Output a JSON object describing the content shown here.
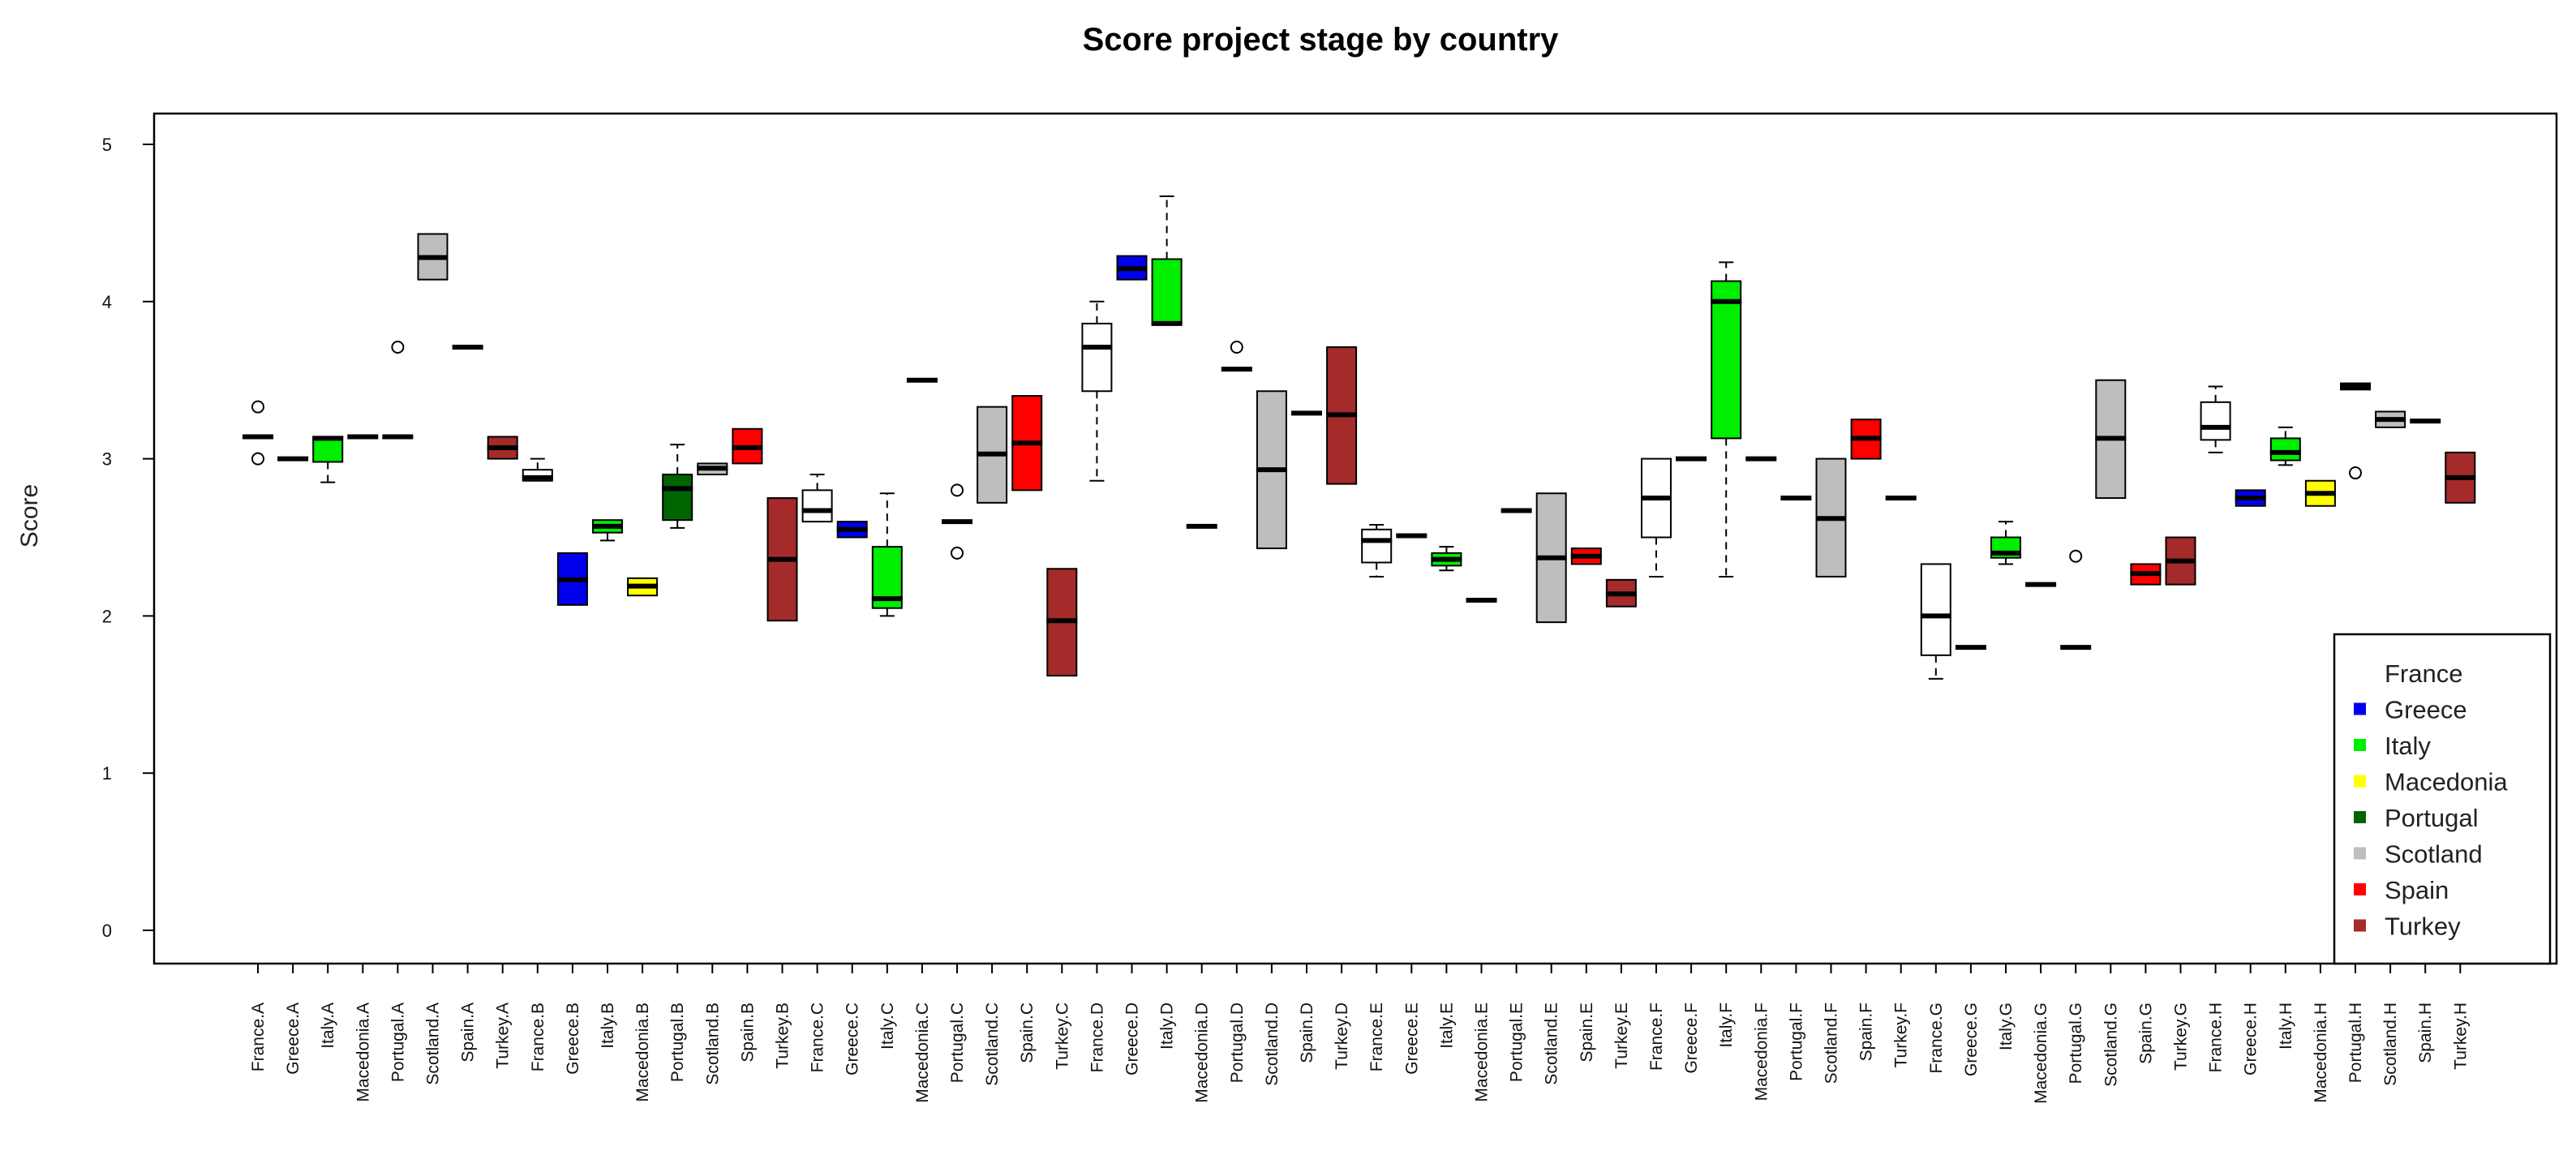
{
  "chart_data": {
    "type": "boxplot",
    "title": "Score project stage by country",
    "xlabel": "",
    "ylabel": "Score",
    "ylim": [
      0,
      5
    ],
    "yticks": [
      0,
      1,
      2,
      3,
      4,
      5
    ],
    "grid": false,
    "legend_position": "bottom-right",
    "colors": {
      "France": "#ffffff",
      "Greece": "#0000ee",
      "Italy": "#00ee00",
      "Macedonia": "#ffff00",
      "Portugal": "#006400",
      "Scotland": "#bebebe",
      "Spain": "#ff0000",
      "Turkey": "#a52a2a"
    },
    "legend": [
      {
        "label": "France",
        "color": "#ffffff"
      },
      {
        "label": "Greece",
        "color": "#0000ee"
      },
      {
        "label": "Italy",
        "color": "#00ee00"
      },
      {
        "label": "Macedonia",
        "color": "#ffff00"
      },
      {
        "label": "Portugal",
        "color": "#006400"
      },
      {
        "label": "Scotland",
        "color": "#bebebe"
      },
      {
        "label": "Spain",
        "color": "#ff0000"
      },
      {
        "label": "Turkey",
        "color": "#a52a2a"
      }
    ],
    "categories": [
      "France.A",
      "Greece.A",
      "Italy.A",
      "Macedonia.A",
      "Portugal.A",
      "Scotland.A",
      "Spain.A",
      "Turkey.A",
      "France.B",
      "Greece.B",
      "Italy.B",
      "Macedonia.B",
      "Portugal.B",
      "Scotland.B",
      "Spain.B",
      "Turkey.B",
      "France.C",
      "Greece.C",
      "Italy.C",
      "Macedonia.C",
      "Portugal.C",
      "Scotland.C",
      "Spain.C",
      "Turkey.C",
      "France.D",
      "Greece.D",
      "Italy.D",
      "Macedonia.D",
      "Portugal.D",
      "Scotland.D",
      "Spain.D",
      "Turkey.D",
      "France.E",
      "Greece.E",
      "Italy.E",
      "Macedonia.E",
      "Portugal.E",
      "Scotland.E",
      "Spain.E",
      "Turkey.E",
      "France.F",
      "Greece.F",
      "Italy.F",
      "Macedonia.F",
      "Portugal.F",
      "Scotland.F",
      "Spain.F",
      "Turkey.F",
      "France.G",
      "Greece.G",
      "Italy.G",
      "Macedonia.G",
      "Portugal.G",
      "Scotland.G",
      "Spain.G",
      "Turkey.G",
      "France.H",
      "Greece.H",
      "Italy.H",
      "Macedonia.H",
      "Portugal.H",
      "Scotland.H",
      "Spain.H",
      "Turkey.H"
    ],
    "boxes": [
      {
        "country": "France",
        "min": 3.14,
        "q1": 3.14,
        "median": 3.14,
        "q3": 3.14,
        "max": 3.14,
        "outliers": [
          3.0,
          3.33
        ]
      },
      {
        "country": "Greece",
        "min": 3.0,
        "q1": 3.0,
        "median": 3.0,
        "q3": 3.0,
        "max": 3.0,
        "outliers": []
      },
      {
        "country": "Italy",
        "min": 2.85,
        "q1": 2.98,
        "median": 3.13,
        "q3": 3.14,
        "max": 3.14,
        "outliers": []
      },
      {
        "country": "Macedonia",
        "min": 3.14,
        "q1": 3.14,
        "median": 3.14,
        "q3": 3.14,
        "max": 3.14,
        "outliers": []
      },
      {
        "country": "Portugal",
        "min": 3.14,
        "q1": 3.14,
        "median": 3.14,
        "q3": 3.14,
        "max": 3.14,
        "outliers": [
          3.71
        ]
      },
      {
        "country": "Scotland",
        "min": 4.14,
        "q1": 4.14,
        "median": 4.28,
        "q3": 4.43,
        "max": 4.43,
        "outliers": []
      },
      {
        "country": "Spain",
        "min": 3.71,
        "q1": 3.71,
        "median": 3.71,
        "q3": 3.71,
        "max": 3.71,
        "outliers": []
      },
      {
        "country": "Turkey",
        "min": 3.0,
        "q1": 3.0,
        "median": 3.07,
        "q3": 3.14,
        "max": 3.14,
        "outliers": []
      },
      {
        "country": "France",
        "min": 2.86,
        "q1": 2.86,
        "median": 2.88,
        "q3": 2.93,
        "max": 3.0,
        "outliers": []
      },
      {
        "country": "Greece",
        "min": 2.07,
        "q1": 2.07,
        "median": 2.23,
        "q3": 2.4,
        "max": 2.4,
        "outliers": []
      },
      {
        "country": "Italy",
        "min": 2.48,
        "q1": 2.53,
        "median": 2.57,
        "q3": 2.61,
        "max": 2.61,
        "outliers": []
      },
      {
        "country": "Macedonia",
        "min": 2.13,
        "q1": 2.13,
        "median": 2.19,
        "q3": 2.24,
        "max": 2.24,
        "outliers": []
      },
      {
        "country": "Portugal",
        "min": 2.56,
        "q1": 2.61,
        "median": 2.81,
        "q3": 2.9,
        "max": 3.09,
        "outliers": []
      },
      {
        "country": "Scotland",
        "min": 2.9,
        "q1": 2.9,
        "median": 2.94,
        "q3": 2.97,
        "max": 2.97,
        "outliers": []
      },
      {
        "country": "Spain",
        "min": 2.97,
        "q1": 2.97,
        "median": 3.07,
        "q3": 3.19,
        "max": 3.19,
        "outliers": []
      },
      {
        "country": "Turkey",
        "min": 1.97,
        "q1": 1.97,
        "median": 2.36,
        "q3": 2.75,
        "max": 2.75,
        "outliers": []
      },
      {
        "country": "France",
        "min": 2.6,
        "q1": 2.6,
        "median": 2.67,
        "q3": 2.8,
        "max": 2.9,
        "outliers": []
      },
      {
        "country": "Greece",
        "min": 2.5,
        "q1": 2.5,
        "median": 2.55,
        "q3": 2.6,
        "max": 2.6,
        "outliers": []
      },
      {
        "country": "Italy",
        "min": 2.0,
        "q1": 2.05,
        "median": 2.11,
        "q3": 2.44,
        "max": 2.78,
        "outliers": []
      },
      {
        "country": "Macedonia",
        "min": 3.5,
        "q1": 3.5,
        "median": 3.5,
        "q3": 3.5,
        "max": 3.5,
        "outliers": []
      },
      {
        "country": "Portugal",
        "min": 2.6,
        "q1": 2.6,
        "median": 2.6,
        "q3": 2.6,
        "max": 2.6,
        "outliers": [
          2.4,
          2.8
        ]
      },
      {
        "country": "Scotland",
        "min": 2.72,
        "q1": 2.72,
        "median": 3.03,
        "q3": 3.33,
        "max": 3.33,
        "outliers": []
      },
      {
        "country": "Spain",
        "min": 2.8,
        "q1": 2.8,
        "median": 3.1,
        "q3": 3.4,
        "max": 3.4,
        "outliers": []
      },
      {
        "country": "Turkey",
        "min": 1.62,
        "q1": 1.62,
        "median": 1.97,
        "q3": 2.3,
        "max": 2.3,
        "outliers": []
      },
      {
        "country": "France",
        "min": 2.86,
        "q1": 3.43,
        "median": 3.71,
        "q3": 3.86,
        "max": 4.0,
        "outliers": []
      },
      {
        "country": "Greece",
        "min": 4.14,
        "q1": 4.14,
        "median": 4.21,
        "q3": 4.29,
        "max": 4.29,
        "outliers": []
      },
      {
        "country": "Italy",
        "min": 3.86,
        "q1": 3.86,
        "median": 3.86,
        "q3": 4.27,
        "max": 4.67,
        "outliers": []
      },
      {
        "country": "Macedonia",
        "min": 2.57,
        "q1": 2.57,
        "median": 2.57,
        "q3": 2.57,
        "max": 2.57,
        "outliers": []
      },
      {
        "country": "Portugal",
        "min": 3.57,
        "q1": 3.57,
        "median": 3.57,
        "q3": 3.57,
        "max": 3.57,
        "outliers": [
          3.71
        ]
      },
      {
        "country": "Scotland",
        "min": 2.43,
        "q1": 2.43,
        "median": 2.93,
        "q3": 3.43,
        "max": 3.43,
        "outliers": []
      },
      {
        "country": "Spain",
        "min": 3.29,
        "q1": 3.29,
        "median": 3.29,
        "q3": 3.29,
        "max": 3.29,
        "outliers": []
      },
      {
        "country": "Turkey",
        "min": 2.84,
        "q1": 2.84,
        "median": 3.28,
        "q3": 3.71,
        "max": 3.71,
        "outliers": []
      },
      {
        "country": "France",
        "min": 2.25,
        "q1": 2.34,
        "median": 2.48,
        "q3": 2.55,
        "max": 2.58,
        "outliers": []
      },
      {
        "country": "Greece",
        "min": 2.51,
        "q1": 2.51,
        "median": 2.51,
        "q3": 2.51,
        "max": 2.51,
        "outliers": []
      },
      {
        "country": "Italy",
        "min": 2.29,
        "q1": 2.32,
        "median": 2.36,
        "q3": 2.4,
        "max": 2.44,
        "outliers": []
      },
      {
        "country": "Macedonia",
        "min": 2.1,
        "q1": 2.1,
        "median": 2.1,
        "q3": 2.1,
        "max": 2.1,
        "outliers": []
      },
      {
        "country": "Portugal",
        "min": 2.67,
        "q1": 2.67,
        "median": 2.67,
        "q3": 2.67,
        "max": 2.67,
        "outliers": []
      },
      {
        "country": "Scotland",
        "min": 1.96,
        "q1": 1.96,
        "median": 2.37,
        "q3": 2.78,
        "max": 2.78,
        "outliers": []
      },
      {
        "country": "Spain",
        "min": 2.33,
        "q1": 2.33,
        "median": 2.38,
        "q3": 2.43,
        "max": 2.43,
        "outliers": []
      },
      {
        "country": "Turkey",
        "min": 2.06,
        "q1": 2.06,
        "median": 2.14,
        "q3": 2.23,
        "max": 2.23,
        "outliers": []
      },
      {
        "country": "France",
        "min": 2.25,
        "q1": 2.5,
        "median": 2.75,
        "q3": 3.0,
        "max": 3.0,
        "outliers": []
      },
      {
        "country": "Greece",
        "min": 3.0,
        "q1": 3.0,
        "median": 3.0,
        "q3": 3.0,
        "max": 3.0,
        "outliers": []
      },
      {
        "country": "Italy",
        "min": 2.25,
        "q1": 3.13,
        "median": 4.0,
        "q3": 4.13,
        "max": 4.25,
        "outliers": []
      },
      {
        "country": "Macedonia",
        "min": 3.0,
        "q1": 3.0,
        "median": 3.0,
        "q3": 3.0,
        "max": 3.0,
        "outliers": []
      },
      {
        "country": "Portugal",
        "min": 2.75,
        "q1": 2.75,
        "median": 2.75,
        "q3": 2.75,
        "max": 2.75,
        "outliers": []
      },
      {
        "country": "Scotland",
        "min": 2.25,
        "q1": 2.25,
        "median": 2.62,
        "q3": 3.0,
        "max": 3.0,
        "outliers": []
      },
      {
        "country": "Spain",
        "min": 3.0,
        "q1": 3.0,
        "median": 3.13,
        "q3": 3.25,
        "max": 3.25,
        "outliers": []
      },
      {
        "country": "Turkey",
        "min": 2.75,
        "q1": 2.75,
        "median": 2.75,
        "q3": 2.75,
        "max": 2.75,
        "outliers": []
      },
      {
        "country": "France",
        "min": 1.6,
        "q1": 1.75,
        "median": 2.0,
        "q3": 2.33,
        "max": 2.33,
        "outliers": []
      },
      {
        "country": "Greece",
        "min": 1.8,
        "q1": 1.8,
        "median": 1.8,
        "q3": 1.8,
        "max": 1.8,
        "outliers": []
      },
      {
        "country": "Italy",
        "min": 2.33,
        "q1": 2.37,
        "median": 2.4,
        "q3": 2.5,
        "max": 2.6,
        "outliers": []
      },
      {
        "country": "Macedonia",
        "min": 2.2,
        "q1": 2.2,
        "median": 2.2,
        "q3": 2.2,
        "max": 2.2,
        "outliers": []
      },
      {
        "country": "Portugal",
        "min": 1.8,
        "q1": 1.8,
        "median": 1.8,
        "q3": 1.8,
        "max": 1.8,
        "outliers": [
          2.38
        ]
      },
      {
        "country": "Scotland",
        "min": 2.75,
        "q1": 2.75,
        "median": 3.13,
        "q3": 3.5,
        "max": 3.5,
        "outliers": []
      },
      {
        "country": "Spain",
        "min": 2.2,
        "q1": 2.2,
        "median": 2.27,
        "q3": 2.33,
        "max": 2.33,
        "outliers": []
      },
      {
        "country": "Turkey",
        "min": 2.2,
        "q1": 2.2,
        "median": 2.35,
        "q3": 2.5,
        "max": 2.5,
        "outliers": []
      },
      {
        "country": "France",
        "min": 3.04,
        "q1": 3.12,
        "median": 3.2,
        "q3": 3.36,
        "max": 3.46,
        "outliers": []
      },
      {
        "country": "Greece",
        "min": 2.7,
        "q1": 2.7,
        "median": 2.75,
        "q3": 2.8,
        "max": 2.8,
        "outliers": []
      },
      {
        "country": "Italy",
        "min": 2.96,
        "q1": 2.99,
        "median": 3.04,
        "q3": 3.13,
        "max": 3.2,
        "outliers": []
      },
      {
        "country": "Macedonia",
        "min": 2.7,
        "q1": 2.7,
        "median": 2.78,
        "q3": 2.86,
        "max": 2.86,
        "outliers": []
      },
      {
        "country": "Portugal",
        "min": 3.44,
        "q1": 3.44,
        "median": 3.46,
        "q3": 3.48,
        "max": 3.48,
        "outliers": [
          2.91
        ]
      },
      {
        "country": "Scotland",
        "min": 3.2,
        "q1": 3.2,
        "median": 3.25,
        "q3": 3.3,
        "max": 3.3,
        "outliers": []
      },
      {
        "country": "Spain",
        "min": 3.24,
        "q1": 3.24,
        "median": 3.24,
        "q3": 3.24,
        "max": 3.24,
        "outliers": []
      },
      {
        "country": "Turkey",
        "min": 2.72,
        "q1": 2.72,
        "median": 2.88,
        "q3": 3.04,
        "max": 3.04,
        "outliers": []
      }
    ]
  }
}
